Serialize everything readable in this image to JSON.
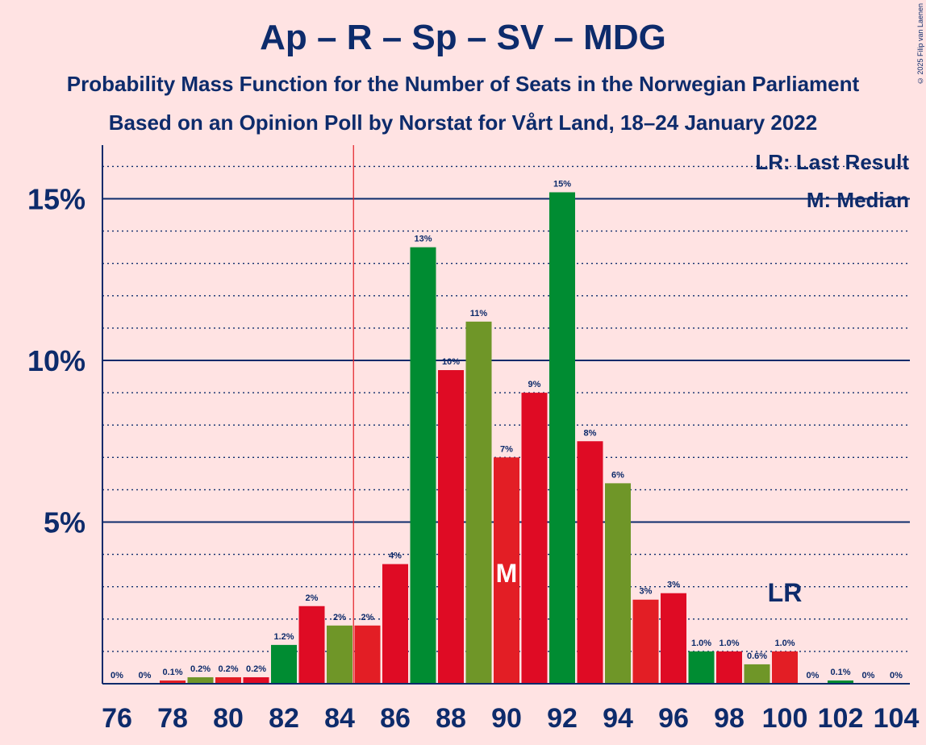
{
  "chart_data": {
    "type": "bar",
    "title": "Ap – R – Sp – SV – MDG",
    "subtitle": "Probability Mass Function for the Number of Seats in the Norwegian Parliament",
    "subtitle2": "Based on an Opinion Poll by Norstat for Vårt Land, 18–24 January 2022",
    "copyright": "© 2025 Filip van Laenen",
    "xlabel": "",
    "ylabel": "",
    "ylim": [
      0,
      16.5
    ],
    "y_ticks": [
      {
        "value": 5,
        "label": "5%"
      },
      {
        "value": 10,
        "label": "10%"
      },
      {
        "value": 15,
        "label": "15%"
      }
    ],
    "x_ticks": [
      "76",
      "78",
      "80",
      "82",
      "84",
      "86",
      "88",
      "90",
      "92",
      "94",
      "96",
      "98",
      "100",
      "102",
      "104"
    ],
    "categories": [
      76,
      77,
      78,
      79,
      80,
      81,
      82,
      83,
      84,
      85,
      86,
      87,
      88,
      89,
      90,
      91,
      92,
      93,
      94,
      95,
      96,
      97,
      98,
      99,
      100,
      101,
      102,
      103,
      104
    ],
    "values": [
      0,
      0,
      0.1,
      0.2,
      0.2,
      0.2,
      1.2,
      2.4,
      1.8,
      1.8,
      3.7,
      13.5,
      9.7,
      11.2,
      7.0,
      9.0,
      15.2,
      7.5,
      6.2,
      2.6,
      2.8,
      1.0,
      1.0,
      0.6,
      1.0,
      0,
      0.1,
      0,
      0
    ],
    "value_labels": [
      "0%",
      "0%",
      "0.1%",
      "0.2%",
      "0.2%",
      "0.2%",
      "1.2%",
      "2%",
      "2%",
      "2%",
      "4%",
      "13%",
      "10%",
      "11%",
      "7%",
      "9%",
      "15%",
      "8%",
      "6%",
      "3%",
      "3%",
      "1.0%",
      "1.0%",
      "0.6%",
      "1.0%",
      "0%",
      "0.1%",
      "0%",
      "0%"
    ],
    "bar_colors": [
      "#E31E25",
      "#DF0B24",
      "#E31E25",
      "#6F9628",
      "#E31E25",
      "#DF0B24",
      "#008C32",
      "#DF0B24",
      "#6F9628",
      "#E31E25",
      "#DF0B24",
      "#008C32",
      "#DF0B24",
      "#6F9628",
      "#E31E25",
      "#DF0B24",
      "#008C32",
      "#DF0B24",
      "#6F9628",
      "#E31E25",
      "#DF0B24",
      "#008C32",
      "#DF0B24",
      "#6F9628",
      "#E31E25",
      "#DF0B24",
      "#008C32",
      "#DF0B24",
      "#6F9628"
    ],
    "last_result_seat": 84.5,
    "median_seat": 90,
    "median_marker": "M",
    "last_result_marker": "LR",
    "lr_marker_seat": 100,
    "legend": [
      "LR: Last Result",
      "M: Median"
    ],
    "legend_position": "top-right",
    "colors": {
      "axis": "#0D2B6B",
      "last_result_line": "#E31E25",
      "background": "#FFE3E3"
    }
  }
}
